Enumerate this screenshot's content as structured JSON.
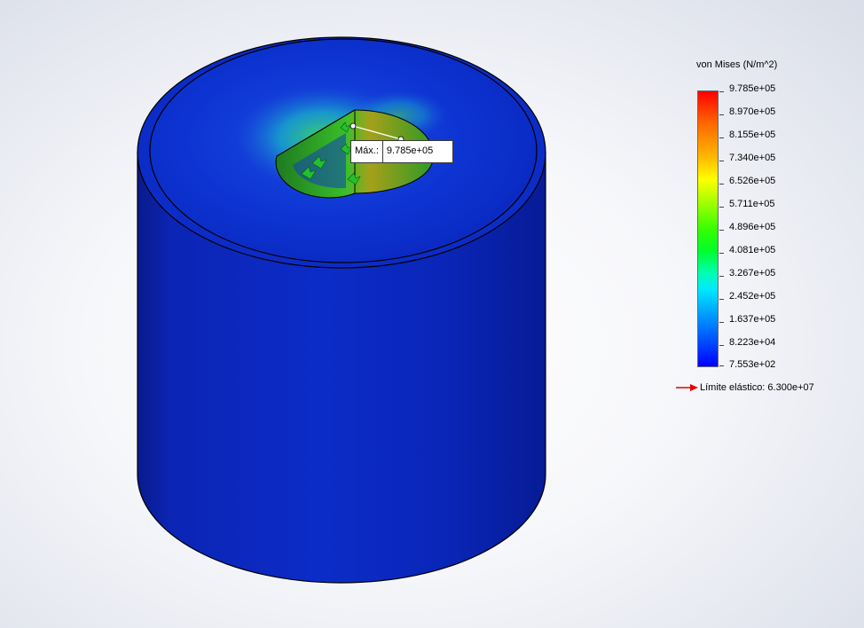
{
  "probe": {
    "label": "Máx.:",
    "value": "9.785e+05"
  },
  "legend": {
    "title": "von Mises (N/m^2)",
    "labels": [
      "9.785e+05",
      "8.970e+05",
      "8.155e+05",
      "7.340e+05",
      "6.526e+05",
      "5.711e+05",
      "4.896e+05",
      "4.081e+05",
      "3.267e+05",
      "2.452e+05",
      "1.637e+05",
      "8.223e+04",
      "7.553e+02"
    ],
    "yield_label": "Límite elástico: 6.300e+07",
    "yield_icon": "red-arrow-icon"
  },
  "colors": {
    "body_blue": "#0a22b8",
    "top_blue": "#0a2fd0",
    "yield_arrow": "#e00000"
  }
}
